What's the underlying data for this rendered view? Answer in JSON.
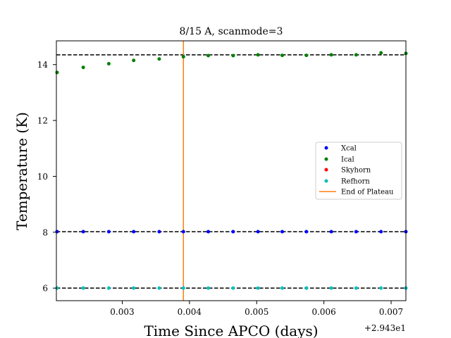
{
  "chart_data": {
    "type": "scatter",
    "title": "8/15 A, scanmode=3",
    "xlabel": "Time Since APCO (days)",
    "ylabel": "Temperature (K)",
    "x_offset_label": "+2.943e1",
    "xlim": [
      29.43202,
      29.43722
    ],
    "ylim": [
      5.55,
      14.85
    ],
    "xticks": [
      29.433,
      29.434,
      29.435,
      29.436,
      29.437
    ],
    "xtick_labels": [
      "0.003",
      "0.004",
      "0.005",
      "0.006",
      "0.007"
    ],
    "yticks": [
      6,
      8,
      10,
      12,
      14
    ],
    "ytick_labels": [
      "6",
      "8",
      "10",
      "12",
      "14"
    ],
    "grid": false,
    "legend_position": "center-right",
    "series": [
      {
        "name": "Xcal",
        "color": "#0000ff",
        "x": [
          29.43203,
          29.43242,
          29.4328,
          29.43317,
          29.43355,
          29.43391,
          29.43428,
          29.43465,
          29.43502,
          29.43538,
          29.43574,
          29.43611,
          29.43648,
          29.43685,
          29.43722
        ],
        "y": [
          8.02,
          8.02,
          8.02,
          8.02,
          8.02,
          8.02,
          8.02,
          8.02,
          8.02,
          8.02,
          8.02,
          8.02,
          8.02,
          8.02,
          8.02
        ]
      },
      {
        "name": "Ical",
        "color": "#008000",
        "x": [
          29.43203,
          29.43242,
          29.4328,
          29.43317,
          29.43355,
          29.43391,
          29.43428,
          29.43465,
          29.43502,
          29.43538,
          29.43574,
          29.43611,
          29.43648,
          29.43685,
          29.43722
        ],
        "y": [
          13.72,
          13.9,
          14.03,
          14.15,
          14.2,
          14.28,
          14.32,
          14.32,
          14.35,
          14.33,
          14.33,
          14.35,
          14.35,
          14.42,
          14.4
        ]
      },
      {
        "name": "Skyhorn",
        "color": "#ff0000",
        "x": [],
        "y": []
      },
      {
        "name": "Refhorn",
        "color": "#00bfbf",
        "x": [
          29.43203,
          29.43242,
          29.4328,
          29.43317,
          29.43355,
          29.43391,
          29.43428,
          29.43465,
          29.43502,
          29.43538,
          29.43574,
          29.43611,
          29.43648,
          29.43685,
          29.43722
        ],
        "y": [
          6.0,
          6.0,
          6.0,
          6.0,
          6.0,
          6.0,
          6.0,
          6.0,
          6.0,
          6.0,
          6.0,
          6.0,
          6.0,
          6.0,
          6.0
        ]
      }
    ],
    "hlines": [
      14.35,
      8.02,
      6.0
    ],
    "vline": {
      "name": "End of Plateau",
      "x": 29.43391,
      "color": "#ff7f0e"
    }
  }
}
